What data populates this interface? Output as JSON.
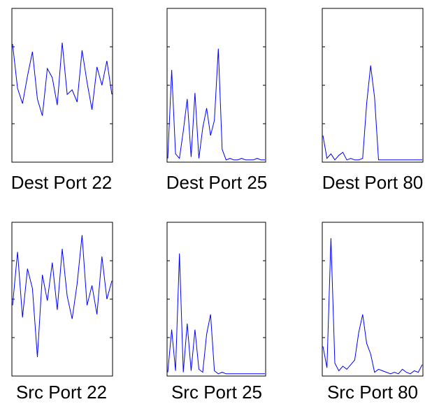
{
  "figure": {
    "line_color": "#0000ff",
    "frame_color": "#000000",
    "background": "#ffffff"
  },
  "chart_data": [
    {
      "type": "line",
      "title": "Dest Port 22",
      "x": [
        0,
        5,
        10,
        15,
        20,
        25,
        30,
        35,
        40,
        45,
        50,
        55,
        60,
        65,
        70,
        75,
        80,
        85,
        90,
        95,
        100
      ],
      "ylim": [
        0,
        1
      ],
      "series": [
        {
          "values": [
            0.77,
            0.48,
            0.38,
            0.56,
            0.72,
            0.41,
            0.3,
            0.61,
            0.55,
            0.37,
            0.78,
            0.44,
            0.47,
            0.39,
            0.73,
            0.52,
            0.34,
            0.62,
            0.5,
            0.66,
            0.44
          ]
        }
      ]
    },
    {
      "type": "line",
      "title": "Dest Port 25",
      "x": [
        0,
        4,
        8,
        12,
        16,
        20,
        24,
        28,
        32,
        36,
        40,
        44,
        48,
        52,
        56,
        60,
        64,
        68,
        72,
        76,
        80,
        84,
        88,
        92,
        96,
        100
      ],
      "ylim": [
        0,
        1
      ],
      "series": [
        {
          "values": [
            0.02,
            0.6,
            0.05,
            0.02,
            0.2,
            0.41,
            0.03,
            0.45,
            0.02,
            0.22,
            0.35,
            0.17,
            0.27,
            0.74,
            0.08,
            0.01,
            0.02,
            0.01,
            0.01,
            0.02,
            0.01,
            0.01,
            0.01,
            0.02,
            0.01,
            0.01
          ]
        }
      ]
    },
    {
      "type": "line",
      "title": "Dest Port 80",
      "x": [
        0,
        4,
        8,
        12,
        16,
        20,
        24,
        28,
        32,
        36,
        40,
        44,
        48,
        52,
        56,
        60,
        64,
        68,
        72,
        76,
        80,
        84,
        88,
        92,
        96,
        100
      ],
      "ylim": [
        0,
        1
      ],
      "series": [
        {
          "values": [
            0.17,
            0.02,
            0.05,
            0.01,
            0.04,
            0.06,
            0.01,
            0.02,
            0.01,
            0.01,
            0.02,
            0.38,
            0.63,
            0.42,
            0.01,
            0.01,
            0.01,
            0.01,
            0.01,
            0.01,
            0.01,
            0.01,
            0.01,
            0.01,
            0.01,
            0.01
          ]
        }
      ]
    },
    {
      "type": "line",
      "title": "Src Port 22",
      "x": [
        0,
        5,
        10,
        15,
        20,
        25,
        30,
        35,
        40,
        45,
        50,
        55,
        60,
        65,
        70,
        75,
        80,
        85,
        90,
        95,
        100
      ],
      "ylim": [
        0,
        1
      ],
      "series": [
        {
          "values": [
            0.46,
            0.81,
            0.38,
            0.7,
            0.57,
            0.12,
            0.66,
            0.49,
            0.74,
            0.43,
            0.83,
            0.52,
            0.37,
            0.6,
            0.92,
            0.46,
            0.59,
            0.4,
            0.78,
            0.5,
            0.62
          ]
        }
      ]
    },
    {
      "type": "line",
      "title": "Src Port 25",
      "x": [
        0,
        4,
        8,
        12,
        16,
        20,
        24,
        28,
        32,
        36,
        40,
        44,
        48,
        52,
        56,
        60,
        64,
        68,
        72,
        76,
        80,
        84,
        88,
        92,
        96,
        100
      ],
      "ylim": [
        0,
        1
      ],
      "series": [
        {
          "values": [
            0.02,
            0.3,
            0.03,
            0.8,
            0.02,
            0.34,
            0.03,
            0.3,
            0.04,
            0.02,
            0.27,
            0.4,
            0.03,
            0.01,
            0.02,
            0.01,
            0.01,
            0.01,
            0.01,
            0.01,
            0.01,
            0.01,
            0.01,
            0.01,
            0.01,
            0.01
          ]
        }
      ]
    },
    {
      "type": "line",
      "title": "Src Port 80",
      "x": [
        0,
        4,
        8,
        12,
        16,
        20,
        24,
        28,
        32,
        36,
        40,
        44,
        48,
        52,
        56,
        60,
        64,
        68,
        72,
        76,
        80,
        84,
        88,
        92,
        96,
        100
      ],
      "ylim": [
        0,
        1
      ],
      "series": [
        {
          "values": [
            0.19,
            0.05,
            0.9,
            0.08,
            0.03,
            0.06,
            0.04,
            0.07,
            0.1,
            0.28,
            0.4,
            0.21,
            0.14,
            0.02,
            0.04,
            0.03,
            0.02,
            0.01,
            0.02,
            0.01,
            0.04,
            0.02,
            0.01,
            0.03,
            0.02,
            0.07
          ]
        }
      ]
    }
  ]
}
